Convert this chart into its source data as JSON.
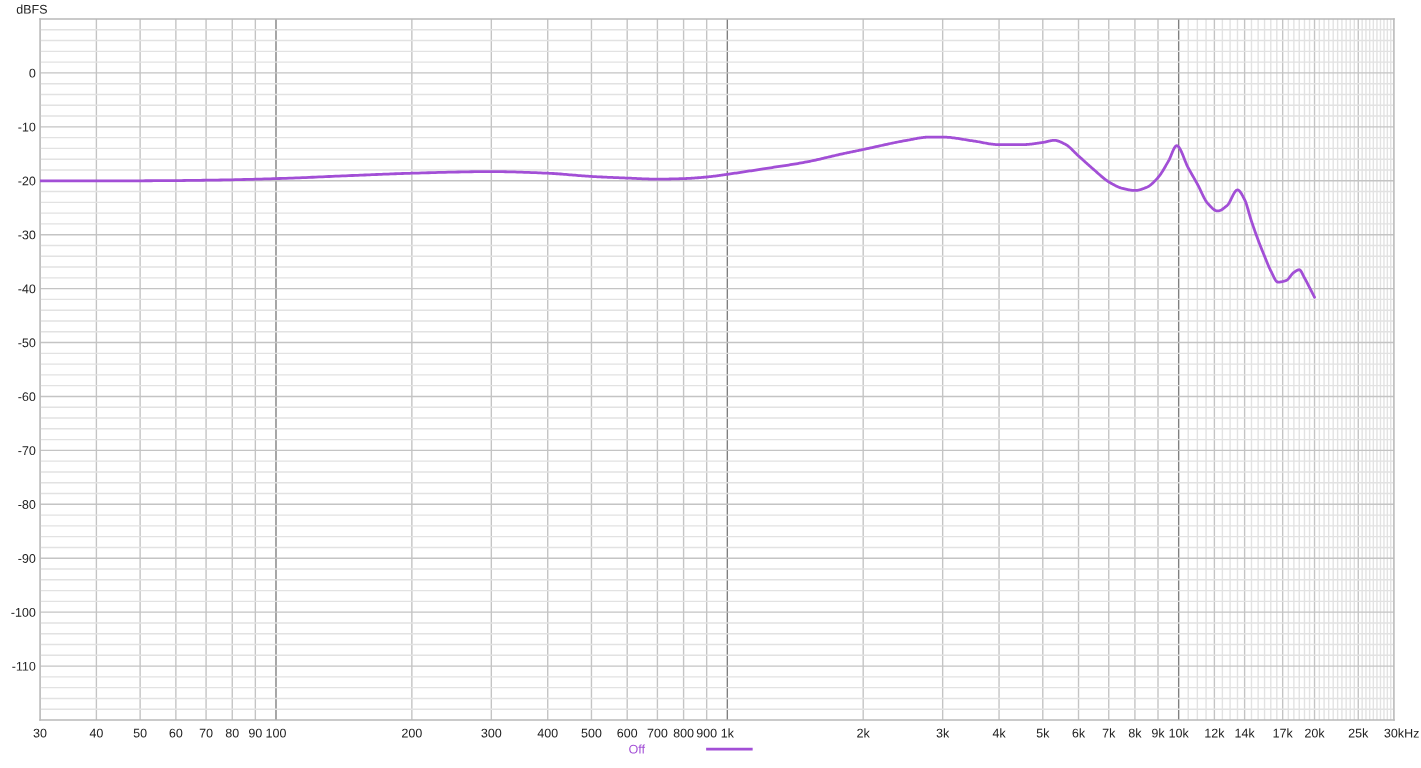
{
  "chart_data": {
    "type": "line",
    "ylabel": "dBFS",
    "xlabel": "Hz",
    "log": "x",
    "grid": true,
    "legend": "bottom",
    "marker": "none",
    "line_style": "solid",
    "xlim": [
      30,
      30000
    ],
    "ylim": [
      -120,
      10
    ],
    "xticks": [
      30,
      40,
      50,
      60,
      70,
      80,
      90,
      100,
      200,
      300,
      400,
      500,
      600,
      700,
      800,
      900,
      {
        "value": 1000,
        "label": "1k"
      },
      {
        "value": 2000,
        "label": "2k"
      },
      {
        "value": 3000,
        "label": "3k"
      },
      {
        "value": 4000,
        "label": "4k"
      },
      {
        "value": 5000,
        "label": "5k"
      },
      {
        "value": 6000,
        "label": "6k"
      },
      {
        "value": 7000,
        "label": "7k"
      },
      {
        "value": 8000,
        "label": "8k"
      },
      {
        "value": 9000,
        "label": "9k"
      },
      {
        "value": 10000,
        "label": "10k"
      },
      {
        "value": 10500,
        "label": null
      },
      {
        "value": 11000,
        "label": null
      },
      {
        "value": 11500,
        "label": null
      },
      {
        "value": 12000,
        "label": "12k"
      },
      {
        "value": 12500,
        "label": null
      },
      {
        "value": 13000,
        "label": null
      },
      {
        "value": 13500,
        "label": null
      },
      {
        "value": 14000,
        "label": "14k"
      },
      {
        "value": 14500,
        "label": null
      },
      {
        "value": 15000,
        "label": null
      },
      {
        "value": 15500,
        "label": null
      },
      {
        "value": 16000,
        "label": null
      },
      {
        "value": 16500,
        "label": null
      },
      {
        "value": 17000,
        "label": "17k"
      },
      {
        "value": 17500,
        "label": null
      },
      {
        "value": 18000,
        "label": null
      },
      {
        "value": 18500,
        "label": null
      },
      {
        "value": 19000,
        "label": null
      },
      {
        "value": 19500,
        "label": null
      },
      {
        "value": 20000,
        "label": "20k"
      },
      {
        "value": 20500,
        "label": null
      },
      {
        "value": 21000,
        "label": null
      },
      {
        "value": 21500,
        "label": null
      },
      {
        "value": 22000,
        "label": null
      },
      {
        "value": 22500,
        "label": null
      },
      {
        "value": 23000,
        "label": null
      },
      {
        "value": 23500,
        "label": null
      },
      {
        "value": 24000,
        "label": null
      },
      {
        "value": 24500,
        "label": null
      },
      {
        "value": 25000,
        "label": "25k"
      },
      {
        "value": 25500,
        "label": null
      },
      {
        "value": 26000,
        "label": null
      },
      {
        "value": 26500,
        "label": null
      },
      {
        "value": 27000,
        "label": null
      },
      {
        "value": 27500,
        "label": null
      },
      {
        "value": 28000,
        "label": null
      },
      {
        "value": 28500,
        "label": null
      },
      {
        "value": 29000,
        "label": null
      },
      {
        "value": 29500,
        "label": null
      },
      {
        "value": 30000,
        "label": "30k"
      }
    ],
    "yticks": [
      {
        "value": 8,
        "label": null
      },
      {
        "value": 6,
        "label": null
      },
      {
        "value": 4,
        "label": null
      },
      {
        "value": 2,
        "label": null
      },
      0,
      {
        "value": -2,
        "label": null
      },
      {
        "value": -4,
        "label": null
      },
      {
        "value": -6,
        "label": null
      },
      {
        "value": -8,
        "label": null
      },
      -10,
      {
        "value": -12,
        "label": null
      },
      {
        "value": -14,
        "label": null
      },
      {
        "value": -16,
        "label": null
      },
      {
        "value": -18,
        "label": null
      },
      -20,
      {
        "value": -22,
        "label": null
      },
      {
        "value": -24,
        "label": null
      },
      {
        "value": -26,
        "label": null
      },
      {
        "value": -28,
        "label": null
      },
      -30,
      {
        "value": -32,
        "label": null
      },
      {
        "value": -34,
        "label": null
      },
      {
        "value": -36,
        "label": null
      },
      {
        "value": -38,
        "label": null
      },
      -40,
      {
        "value": -42,
        "label": null
      },
      {
        "value": -44,
        "label": null
      },
      {
        "value": -46,
        "label": null
      },
      {
        "value": -48,
        "label": null
      },
      -50,
      {
        "value": -52,
        "label": null
      },
      {
        "value": -54,
        "label": null
      },
      {
        "value": -56,
        "label": null
      },
      {
        "value": -58,
        "label": null
      },
      -60,
      {
        "value": -62,
        "label": null
      },
      {
        "value": -64,
        "label": null
      },
      {
        "value": -66,
        "label": null
      },
      {
        "value": -68,
        "label": null
      },
      -70,
      {
        "value": -72,
        "label": null
      },
      {
        "value": -74,
        "label": null
      },
      {
        "value": -76,
        "label": null
      },
      {
        "value": -78,
        "label": null
      },
      -80,
      {
        "value": -82,
        "label": null
      },
      {
        "value": -84,
        "label": null
      },
      {
        "value": -86,
        "label": null
      },
      {
        "value": -88,
        "label": null
      },
      -90,
      {
        "value": -92,
        "label": null
      },
      {
        "value": -94,
        "label": null
      },
      {
        "value": -96,
        "label": null
      },
      {
        "value": -98,
        "label": null
      },
      -100,
      {
        "value": -102,
        "label": null
      },
      {
        "value": -104,
        "label": null
      },
      {
        "value": -106,
        "label": null
      },
      {
        "value": -108,
        "label": null
      },
      -110,
      {
        "value": -112,
        "label": null
      },
      {
        "value": -114,
        "label": null
      },
      {
        "value": -116,
        "label": null
      },
      {
        "value": -118,
        "label": null
      }
    ],
    "series": [
      {
        "name": "Off",
        "color": "#a24fd6",
        "x": [
          30,
          40,
          50,
          70,
          100,
          150,
          200,
          300,
          400,
          500,
          600,
          700,
          800,
          900,
          1000,
          1200,
          1500,
          1800,
          2000,
          2500,
          2800,
          3000,
          3500,
          4000,
          4500,
          5000,
          5300,
          5600,
          6000,
          6500,
          7000,
          7500,
          8000,
          8500,
          9000,
          9500,
          9900,
          10500,
          11000,
          11600,
          12200,
          12800,
          13500,
          14000,
          14500,
          15000,
          15500,
          16000,
          16600,
          17300,
          18000,
          18500,
          19000,
          19500,
          20000
        ],
        "values": [
          -20.0,
          -20.0,
          -20.0,
          -19.9,
          -19.6,
          -19.0,
          -18.6,
          -18.3,
          -18.6,
          -19.2,
          -19.5,
          -19.7,
          -19.6,
          -19.3,
          -18.8,
          -17.8,
          -16.5,
          -15.0,
          -14.2,
          -12.5,
          -11.9,
          -11.9,
          -12.6,
          -13.3,
          -13.3,
          -12.9,
          -12.5,
          -13.2,
          -15.4,
          -18.0,
          -20.2,
          -21.4,
          -21.8,
          -21.2,
          -19.4,
          -16.3,
          -13.5,
          -17.6,
          -20.6,
          -24.2,
          -25.6,
          -24.6,
          -21.7,
          -23.5,
          -27.5,
          -31.0,
          -34.0,
          -36.7,
          -38.8,
          -38.5,
          -37.0,
          -36.5,
          -38.0,
          -39.8,
          -41.6
        ]
      }
    ]
  }
}
